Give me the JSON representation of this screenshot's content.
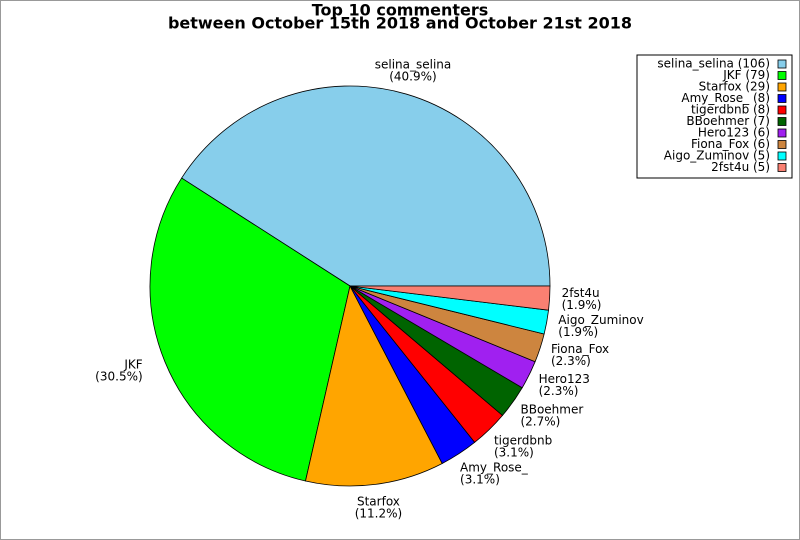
{
  "chart_data": {
    "type": "pie",
    "title": "Top 10 commenters",
    "subtitle": "between October 15th 2018 and October 21st 2018",
    "categories": [
      "selina_selina",
      "JKF",
      "Starfox",
      "Amy_Rose_",
      "tigerdbnb",
      "BBoehmer",
      "Hero123",
      "Fiona_Fox",
      "Aigo_Zuminov",
      "2fst4u"
    ],
    "values": [
      106,
      79,
      29,
      8,
      8,
      7,
      6,
      6,
      5,
      5
    ],
    "percent_labels": [
      "(40.9%)",
      "(30.5%)",
      "(11.2%)",
      "(3.1%)",
      "(3.1%)",
      "(2.7%)",
      "(2.3%)",
      "(2.3%)",
      "(1.9%)",
      "(1.9%)"
    ],
    "legend_labels": [
      "selina_selina (106)",
      "JKF (79)",
      "Starfox (29)",
      "Amy_Rose_ (8)",
      "tigerdbnb (8)",
      "BBoehmer (7)",
      "Hero123 (6)",
      "Fiona_Fox (6)",
      "Aigo_Zuminov (5)",
      "2fst4u (5)"
    ],
    "colors": [
      "#87ceeb",
      "#00ff00",
      "#ffa500",
      "#0000ff",
      "#ff0000",
      "#006400",
      "#a020f0",
      "#cd853f",
      "#00ffff",
      "#fa8072"
    ],
    "legend": "upper right"
  }
}
